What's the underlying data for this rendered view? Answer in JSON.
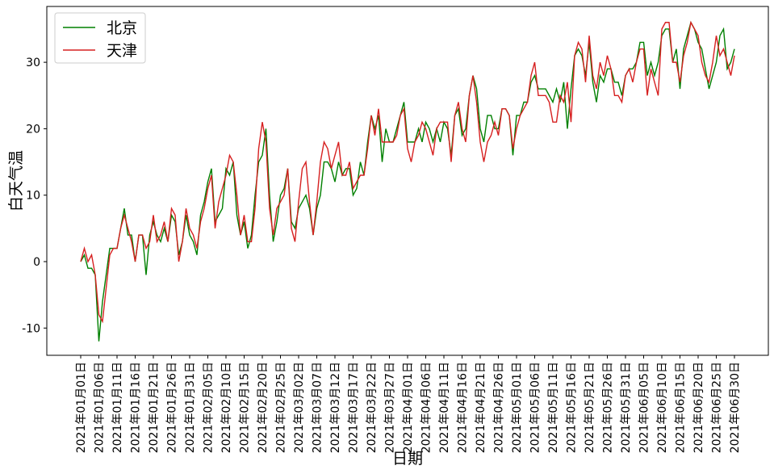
{
  "chart_data": {
    "type": "line",
    "xlabel": "日期",
    "ylabel": "白天气温",
    "categories": [
      "2021年01月01日",
      null,
      null,
      null,
      null,
      "2021年01月06日",
      null,
      null,
      null,
      null,
      "2021年01月11日",
      null,
      null,
      null,
      null,
      "2021年01月16日",
      null,
      null,
      null,
      null,
      "2021年01月21日",
      null,
      null,
      null,
      null,
      "2021年01月26日",
      null,
      null,
      null,
      null,
      "2021年01月31日",
      null,
      null,
      null,
      null,
      "2021年02月05日",
      null,
      null,
      null,
      null,
      "2021年02月10日",
      null,
      null,
      null,
      null,
      "2021年02月15日",
      null,
      null,
      null,
      null,
      "2021年02月20日",
      null,
      null,
      null,
      null,
      "2021年02月25日",
      null,
      null,
      null,
      null,
      "2021年03月02日",
      null,
      null,
      null,
      null,
      "2021年03月07日",
      null,
      null,
      null,
      null,
      "2021年03月12日",
      null,
      null,
      null,
      null,
      "2021年03月17日",
      null,
      null,
      null,
      null,
      "2021年03月22日",
      null,
      null,
      null,
      null,
      "2021年03月27日",
      null,
      null,
      null,
      null,
      "2021年04月01日",
      null,
      null,
      null,
      null,
      "2021年04月06日",
      null,
      null,
      null,
      null,
      "2021年04月11日",
      null,
      null,
      null,
      null,
      "2021年04月16日",
      null,
      null,
      null,
      null,
      "2021年04月21日",
      null,
      null,
      null,
      null,
      "2021年04月26日",
      null,
      null,
      null,
      null,
      "2021年05月01日",
      null,
      null,
      null,
      null,
      "2021年05月06日",
      null,
      null,
      null,
      null,
      "2021年05月11日",
      null,
      null,
      null,
      null,
      "2021年05月16日",
      null,
      null,
      null,
      null,
      "2021年05月21日",
      null,
      null,
      null,
      null,
      "2021年05月26日",
      null,
      null,
      null,
      null,
      "2021年05月31日",
      null,
      null,
      null,
      null,
      "2021年06月05日",
      null,
      null,
      null,
      null,
      "2021年06月10日",
      null,
      null,
      null,
      null,
      "2021年06月15日",
      null,
      null,
      null,
      null,
      "2021年06月20日",
      null,
      null,
      null,
      null,
      "2021年06月25日",
      null,
      null,
      null,
      null,
      "2021年06月30日"
    ],
    "series": [
      {
        "name": "北京",
        "color": "#008000",
        "values": [
          0,
          1,
          -1,
          -1,
          -2,
          -12,
          -6,
          -2,
          2,
          2,
          2,
          5,
          8,
          4,
          4,
          0,
          4,
          4,
          -2,
          4,
          6,
          4,
          3,
          5,
          3,
          7,
          6,
          1,
          3,
          7,
          4,
          3,
          1,
          7,
          9,
          12,
          14,
          6,
          7,
          8,
          14,
          13,
          15,
          7,
          4,
          6,
          2,
          4,
          10,
          15,
          16,
          20,
          10,
          3,
          6,
          10,
          11,
          14,
          6,
          5,
          8,
          9,
          10,
          8,
          4,
          8,
          10,
          15,
          15,
          14,
          12,
          15,
          13,
          14,
          14,
          10,
          11,
          15,
          13,
          18,
          22,
          20,
          22,
          15,
          20,
          18,
          18,
          20,
          22,
          24,
          18,
          18,
          18,
          20,
          18,
          21,
          20,
          18,
          20,
          18,
          21,
          20,
          16,
          22,
          23,
          19,
          20,
          25,
          28,
          26,
          20,
          18,
          22,
          22,
          20,
          20,
          23,
          23,
          22,
          16,
          22,
          22,
          24,
          24,
          27,
          28,
          26,
          26,
          26,
          25,
          24,
          26,
          24,
          27,
          20,
          26,
          31,
          32,
          31,
          28,
          33,
          27,
          24,
          28,
          27,
          29,
          29,
          27,
          27,
          25,
          28,
          29,
          29,
          30,
          33,
          33,
          28,
          30,
          28,
          30,
          34,
          35,
          35,
          30,
          32,
          26,
          32,
          34,
          36,
          35,
          33,
          32,
          29,
          26,
          28,
          30,
          34,
          35,
          29,
          30,
          32
        ]
      },
      {
        "name": "天津",
        "color": "#d62020",
        "values": [
          0,
          2,
          0,
          1,
          -2,
          -8,
          -9,
          -4,
          1,
          2,
          2,
          5,
          7,
          5,
          3,
          0,
          4,
          4,
          2,
          3,
          7,
          3,
          4,
          6,
          3,
          8,
          7,
          0,
          3,
          8,
          5,
          4,
          2,
          6,
          8,
          11,
          13,
          5,
          9,
          11,
          13,
          16,
          15,
          10,
          4,
          7,
          3,
          3,
          8,
          17,
          21,
          18,
          8,
          4,
          8,
          9,
          10,
          14,
          5,
          3,
          9,
          14,
          15,
          9,
          4,
          9,
          15,
          18,
          17,
          14,
          16,
          18,
          13,
          13,
          15,
          11,
          12,
          13,
          13,
          17,
          22,
          19,
          23,
          18,
          18,
          18,
          18,
          19,
          22,
          23,
          17,
          15,
          18,
          19,
          21,
          20,
          18,
          16,
          20,
          21,
          21,
          21,
          15,
          22,
          24,
          20,
          18,
          25,
          28,
          24,
          18,
          15,
          18,
          19,
          21,
          19,
          23,
          23,
          22,
          17,
          20,
          22,
          23,
          24,
          28,
          30,
          25,
          25,
          25,
          24,
          21,
          21,
          25,
          24,
          27,
          21,
          31,
          33,
          32,
          27,
          34,
          28,
          26,
          30,
          28,
          31,
          29,
          25,
          25,
          24,
          28,
          29,
          27,
          30,
          32,
          32,
          25,
          29,
          27,
          25,
          35,
          36,
          36,
          30,
          30,
          27,
          31,
          33,
          36,
          35,
          34,
          30,
          28,
          27,
          30,
          34,
          31,
          32,
          30,
          28,
          31
        ]
      }
    ],
    "ylim": [
      -14.1,
      38.4
    ],
    "yticks": [
      -10,
      0,
      10,
      20,
      30
    ],
    "legend": "upper left"
  }
}
